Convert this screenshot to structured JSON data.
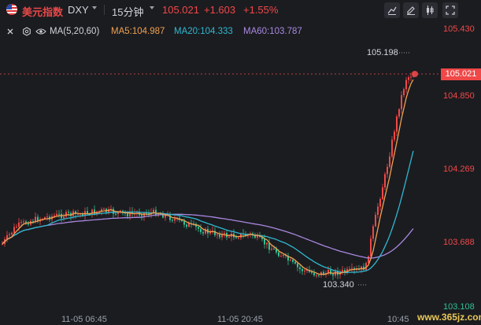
{
  "header": {
    "symbol_name": "美元指数",
    "symbol_code": "DXY",
    "interval": "15分钟",
    "last_price": "105.021",
    "change": "+1.603",
    "change_pct": "+1.55%"
  },
  "indicator": {
    "name": "MA(5,20,60)",
    "ma5": "MA5:104.987",
    "ma20": "MA20:104.333",
    "ma60": "MA60:103.787",
    "colors": {
      "ma5": "#f0a050",
      "ma20": "#30b8d0",
      "ma60": "#a888e0"
    }
  },
  "toolbar": {
    "icons": [
      "draw-line-icon",
      "edit-icon",
      "candle-style-icon",
      "fullscreen-icon"
    ]
  },
  "y_axis": {
    "labels": [
      "105.430",
      "104.850",
      "104.269",
      "103.688",
      "103.108"
    ],
    "current_tag": "105.021"
  },
  "x_axis": {
    "labels": [
      "11-05 06:45",
      "11-05 20:45",
      "10:45"
    ]
  },
  "annotations": {
    "high": "105.198",
    "low": "103.340"
  },
  "watermark": "www.365jz.com",
  "colors": {
    "up": "#f04848",
    "down": "#30c090",
    "background": "#1b1c20"
  }
}
